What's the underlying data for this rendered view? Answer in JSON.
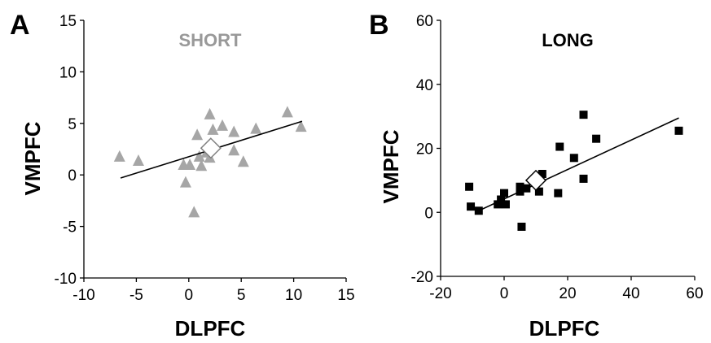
{
  "chart_data": [
    {
      "type": "scatter",
      "panel_label": "A",
      "title": "SHORT",
      "title_color": "#999999",
      "marker": "triangle",
      "marker_color": "#a6a6a6",
      "xlabel": "DLPFC",
      "ylabel": "VMPFC",
      "xlim": [
        -10,
        15
      ],
      "ylim": [
        -10,
        15
      ],
      "xticks": [
        -10,
        -5,
        0,
        5,
        10,
        15
      ],
      "yticks": [
        -10,
        -5,
        0,
        5,
        10,
        15
      ],
      "xtick_labels": [
        "-10",
        "-5",
        "0",
        "5",
        "10",
        "15"
      ],
      "ytick_labels": [
        "-10",
        "-5",
        "0",
        "5",
        "10",
        "15"
      ],
      "points": [
        {
          "x": -6.6,
          "y": 1.8
        },
        {
          "x": -4.8,
          "y": 1.4
        },
        {
          "x": -0.5,
          "y": 1.0
        },
        {
          "x": -0.3,
          "y": -0.7
        },
        {
          "x": 0.1,
          "y": 1.0
        },
        {
          "x": 0.5,
          "y": -3.6
        },
        {
          "x": 0.8,
          "y": 3.9
        },
        {
          "x": 1.0,
          "y": 1.8
        },
        {
          "x": 1.2,
          "y": 0.9
        },
        {
          "x": 1.7,
          "y": 2.2
        },
        {
          "x": 2.0,
          "y": 1.7
        },
        {
          "x": 2.0,
          "y": 5.9
        },
        {
          "x": 2.3,
          "y": 4.4
        },
        {
          "x": 3.2,
          "y": 4.8
        },
        {
          "x": 4.3,
          "y": 4.2
        },
        {
          "x": 4.3,
          "y": 2.4
        },
        {
          "x": 5.2,
          "y": 1.3
        },
        {
          "x": 6.4,
          "y": 4.5
        },
        {
          "x": 9.4,
          "y": 6.1
        },
        {
          "x": 10.7,
          "y": 4.7
        }
      ],
      "mean_point": {
        "x": 2.1,
        "y": 2.6,
        "marker": "diamond"
      },
      "trendline": {
        "x": [
          -6.5,
          10.8
        ],
        "y": [
          -0.3,
          5.2
        ]
      }
    },
    {
      "type": "scatter",
      "panel_label": "B",
      "title": "LONG",
      "title_color": "#000000",
      "marker": "square",
      "marker_color": "#000000",
      "xlabel": "DLPFC",
      "ylabel": "VMPFC",
      "xlim": [
        -20,
        60
      ],
      "ylim": [
        -20,
        60
      ],
      "xticks": [
        -20,
        0,
        20,
        40,
        60
      ],
      "yticks": [
        -20,
        0,
        20,
        40,
        60
      ],
      "xtick_labels": [
        "-20",
        "0",
        "20",
        "40",
        "60"
      ],
      "ytick_labels": [
        "-20",
        "0",
        "20",
        "40",
        "60"
      ],
      "points": [
        {
          "x": -11,
          "y": 8
        },
        {
          "x": -10.5,
          "y": 1.8
        },
        {
          "x": -8,
          "y": 0.5
        },
        {
          "x": -2,
          "y": 2.5
        },
        {
          "x": -1,
          "y": 4
        },
        {
          "x": 0,
          "y": 6
        },
        {
          "x": 0.5,
          "y": 2.5
        },
        {
          "x": 5,
          "y": 6.5
        },
        {
          "x": 5,
          "y": 8
        },
        {
          "x": 5.5,
          "y": -4.5
        },
        {
          "x": 7,
          "y": 7.5
        },
        {
          "x": 11,
          "y": 6.5
        },
        {
          "x": 12,
          "y": 12
        },
        {
          "x": 17,
          "y": 6
        },
        {
          "x": 17.5,
          "y": 20.5
        },
        {
          "x": 22,
          "y": 17
        },
        {
          "x": 25,
          "y": 10.5
        },
        {
          "x": 25,
          "y": 30.5
        },
        {
          "x": 29,
          "y": 23
        },
        {
          "x": 55,
          "y": 25.5
        }
      ],
      "mean_point": {
        "x": 10,
        "y": 10,
        "marker": "diamond"
      },
      "trendline": {
        "x": [
          -8,
          55
        ],
        "y": [
          0.5,
          29.5
        ]
      }
    }
  ]
}
